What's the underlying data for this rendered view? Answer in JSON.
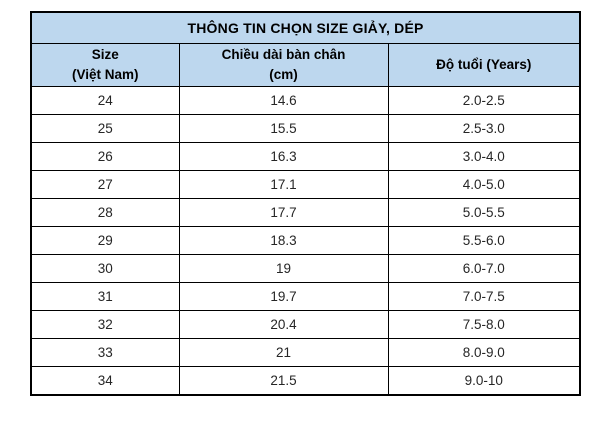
{
  "table": {
    "title": "THÔNG TIN CHỌN SIZE GIẢY, DÉP",
    "columns": [
      [
        "Size",
        "(Việt Nam)"
      ],
      [
        "Chiều dài bàn chân",
        "(cm)"
      ],
      [
        "Độ tuổi (Years)"
      ]
    ],
    "rows": [
      [
        "24",
        "14.6",
        "2.0-2.5"
      ],
      [
        "25",
        "15.5",
        "2.5-3.0"
      ],
      [
        "26",
        "16.3",
        "3.0-4.0"
      ],
      [
        "27",
        "17.1",
        "4.0-5.0"
      ],
      [
        "28",
        "17.7",
        "5.0-5.5"
      ],
      [
        "29",
        "18.3",
        "5.5-6.0"
      ],
      [
        "30",
        "19",
        "6.0-7.0"
      ],
      [
        "31",
        "19.7",
        "7.0-7.5"
      ],
      [
        "32",
        "20.4",
        "7.5-8.0"
      ],
      [
        "33",
        "21",
        "8.0-9.0"
      ],
      [
        "34",
        "21.5",
        "9.0-10"
      ]
    ]
  },
  "colors": {
    "header_bg": "#BDD7EE",
    "border": "#000000",
    "text": "#000000"
  }
}
